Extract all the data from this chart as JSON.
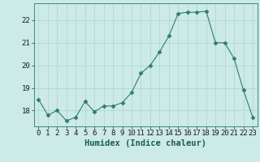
{
  "x": [
    0,
    1,
    2,
    3,
    4,
    5,
    6,
    7,
    8,
    9,
    10,
    11,
    12,
    13,
    14,
    15,
    16,
    17,
    18,
    19,
    20,
    21,
    22,
    23
  ],
  "y": [
    18.5,
    17.8,
    18.0,
    17.55,
    17.7,
    18.4,
    17.95,
    18.2,
    18.2,
    18.35,
    18.8,
    19.65,
    20.0,
    20.6,
    21.3,
    22.3,
    22.35,
    22.35,
    22.4,
    21.0,
    21.0,
    20.3,
    18.9,
    17.7
  ],
  "line_color": "#2e7d6e",
  "marker": "D",
  "marker_size": 2.5,
  "bg_color": "#cceae7",
  "grid_color": "#add4d0",
  "xlabel": "Humidex (Indice chaleur)",
  "ylim": [
    17.3,
    22.75
  ],
  "yticks": [
    18,
    19,
    20,
    21,
    22
  ],
  "xticks": [
    0,
    1,
    2,
    3,
    4,
    5,
    6,
    7,
    8,
    9,
    10,
    11,
    12,
    13,
    14,
    15,
    16,
    17,
    18,
    19,
    20,
    21,
    22,
    23
  ],
  "xlabel_fontsize": 7.5,
  "tick_fontsize": 6.5
}
